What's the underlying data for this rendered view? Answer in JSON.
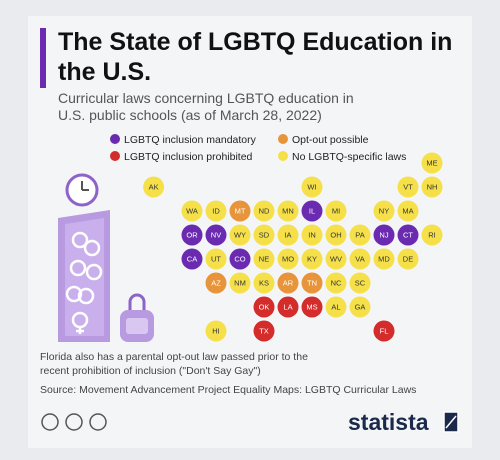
{
  "chart_data": {
    "type": "tile-map",
    "title": "The State of LGBTQ Education in the U.S.",
    "subtitle": "Curricular laws concerning LGBTQ education in U.S. public schools (as of March 28, 2022)",
    "series": [
      {
        "name": "LGBTQ inclusion mandatory",
        "color": "#6a2bb0",
        "label_color": "#ffffff",
        "states": [
          "IL",
          "OR",
          "NV",
          "NJ",
          "CT",
          "CA",
          "CO"
        ]
      },
      {
        "name": "Opt-out possible",
        "color": "#e8943a",
        "label_color": "#ffffff",
        "states": [
          "MT",
          "AZ",
          "AR",
          "TN"
        ]
      },
      {
        "name": "LGBTQ inclusion prohibited",
        "color": "#d42b2b",
        "label_color": "#ffffff",
        "states": [
          "OK",
          "LA",
          "MS",
          "TX",
          "FL"
        ]
      },
      {
        "name": "No LGBTQ-specific laws",
        "color": "#f5e04a",
        "label_color": "#333333",
        "states": [
          "ME",
          "AK",
          "WI",
          "VT",
          "NH",
          "WA",
          "ID",
          "ND",
          "MN",
          "MI",
          "NY",
          "MA",
          "WY",
          "SD",
          "IA",
          "IN",
          "OH",
          "PA",
          "RI",
          "UT",
          "NE",
          "MO",
          "KY",
          "WV",
          "VA",
          "MD",
          "DE",
          "NM",
          "KS",
          "NC",
          "SC",
          "AL",
          "GA",
          "HI"
        ]
      }
    ],
    "note": "Florida also has a parental opt-out law passed prior to the recent prohibition of inclusion (\"Don't Say Gay\")",
    "source": "Source: Movement Advancement Project Equality Maps: LGBTQ Curricular Laws",
    "logo": "statista"
  }
}
